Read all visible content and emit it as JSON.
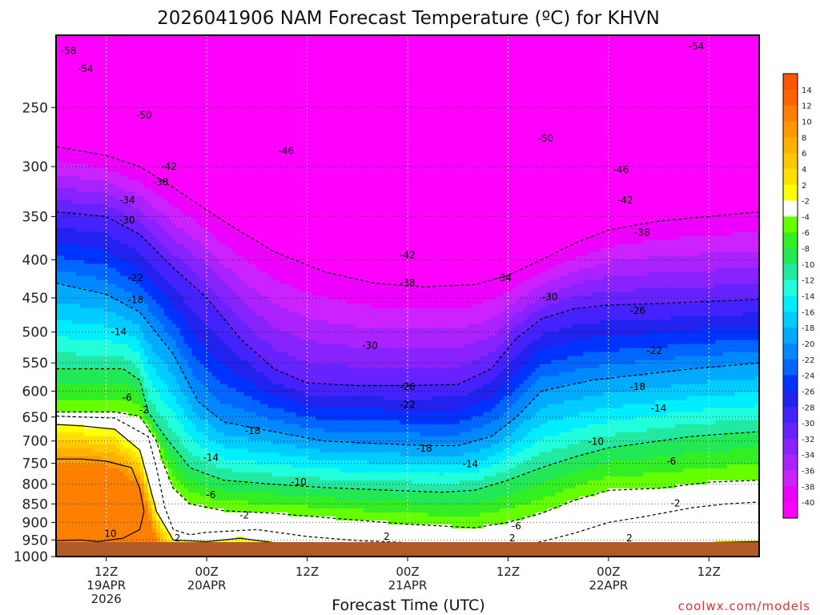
{
  "chart_data": {
    "type": "heatmap",
    "title": "2026041906 NAM Forecast Temperature (ºC) for KHVN",
    "xlabel": "Forecast Time (UTC)",
    "ylabel": "",
    "y_axis": {
      "scale": "log-pressure",
      "range_hpa": [
        1000,
        200
      ],
      "ticks": [
        {
          "value": 250,
          "label": "250"
        },
        {
          "value": 300,
          "label": "300"
        },
        {
          "value": 350,
          "label": "350"
        },
        {
          "value": 400,
          "label": "400"
        },
        {
          "value": 450,
          "label": "450"
        },
        {
          "value": 500,
          "label": "500"
        },
        {
          "value": 550,
          "label": "550"
        },
        {
          "value": 600,
          "label": "600"
        },
        {
          "value": 650,
          "label": "650"
        },
        {
          "value": 700,
          "label": "700"
        },
        {
          "value": 750,
          "label": "750"
        },
        {
          "value": 800,
          "label": "800"
        },
        {
          "value": 850,
          "label": "850"
        },
        {
          "value": 900,
          "label": "900"
        },
        {
          "value": 950,
          "label": "950"
        },
        {
          "value": 1000,
          "label": "1000"
        }
      ]
    },
    "x_axis": {
      "range_hours": [
        0,
        84
      ],
      "ticks": [
        {
          "hour": 6,
          "lines": [
            "12Z",
            "19APR",
            "2026"
          ]
        },
        {
          "hour": 18,
          "lines": [
            "00Z",
            "20APR"
          ]
        },
        {
          "hour": 30,
          "lines": [
            "12Z"
          ]
        },
        {
          "hour": 42,
          "lines": [
            "00Z",
            "21APR"
          ]
        },
        {
          "hour": 54,
          "lines": [
            "12Z"
          ]
        },
        {
          "hour": 66,
          "lines": [
            "00Z",
            "22APR"
          ]
        },
        {
          "hour": 78,
          "lines": [
            "12Z"
          ]
        }
      ]
    },
    "colorbar": {
      "entries": [
        {
          "label": "14",
          "color": "#ff6600"
        },
        {
          "label": "12",
          "color": "#ff7f00"
        },
        {
          "label": "10",
          "color": "#ff9900"
        },
        {
          "label": "8",
          "color": "#ffb000"
        },
        {
          "label": "6",
          "color": "#ffc800"
        },
        {
          "label": "4",
          "color": "#ffe000"
        },
        {
          "label": "2",
          "color": "#ffff00"
        },
        {
          "label": "-2",
          "color": "#ffffff"
        },
        {
          "label": "-4",
          "color": "#66ff00"
        },
        {
          "label": "-6",
          "color": "#33ee22"
        },
        {
          "label": "-8",
          "color": "#22e855"
        },
        {
          "label": "-10",
          "color": "#22e8a0"
        },
        {
          "label": "-12",
          "color": "#22ffdd"
        },
        {
          "label": "-14",
          "color": "#00eeff"
        },
        {
          "label": "-16",
          "color": "#00ccff"
        },
        {
          "label": "-18",
          "color": "#00aaff"
        },
        {
          "label": "-20",
          "color": "#0088ff"
        },
        {
          "label": "-22",
          "color": "#0066ff"
        },
        {
          "label": "-24",
          "color": "#0033ff"
        },
        {
          "label": "-26",
          "color": "#2222ee"
        },
        {
          "label": "-28",
          "color": "#4422ff"
        },
        {
          "label": "-30",
          "color": "#6622ff"
        },
        {
          "label": "-32",
          "color": "#8822ff"
        },
        {
          "label": "-34",
          "color": "#aa22ff"
        },
        {
          "label": "-36",
          "color": "#cc22ff"
        },
        {
          "label": "-38",
          "color": "#ee00ff"
        },
        {
          "label": "-40",
          "color": "#ff00ff"
        }
      ],
      "top_color": "#ff5500"
    },
    "series": [
      {
        "name": "-2C isotherm",
        "points": [
          [
            0,
            648
          ],
          [
            3,
            650
          ],
          [
            7,
            652
          ],
          [
            11,
            690
          ],
          [
            12,
            760
          ],
          [
            13,
            860
          ],
          [
            14,
            920
          ],
          [
            16,
            935
          ],
          [
            18,
            928
          ],
          [
            24,
            920
          ],
          [
            30,
            940
          ],
          [
            36,
            952
          ],
          [
            42,
            958
          ],
          [
            46,
            962
          ],
          [
            50,
            965
          ],
          [
            54,
            968
          ],
          [
            58,
            955
          ],
          [
            62,
            930
          ],
          [
            66,
            900
          ],
          [
            70,
            885
          ],
          [
            76,
            860
          ],
          [
            80,
            850
          ],
          [
            84,
            845
          ]
        ]
      },
      {
        "name": "-4C isotherm",
        "points": [
          [
            0,
            640
          ],
          [
            3,
            640
          ],
          [
            7,
            640
          ],
          [
            10,
            648
          ],
          [
            12,
            700
          ],
          [
            13,
            760
          ],
          [
            14,
            810
          ],
          [
            16,
            850
          ],
          [
            20,
            868
          ],
          [
            26,
            875
          ],
          [
            34,
            890
          ],
          [
            42,
            905
          ],
          [
            50,
            915
          ],
          [
            54,
            900
          ],
          [
            58,
            875
          ],
          [
            62,
            840
          ],
          [
            66,
            815
          ],
          [
            72,
            810
          ],
          [
            78,
            795
          ],
          [
            84,
            790
          ]
        ]
      },
      {
        "name": "-10C isotherm",
        "points": [
          [
            0,
            560
          ],
          [
            4,
            560
          ],
          [
            8,
            560
          ],
          [
            10,
            580
          ],
          [
            11,
            640
          ],
          [
            13,
            690
          ],
          [
            16,
            760
          ],
          [
            20,
            790
          ],
          [
            26,
            800
          ],
          [
            32,
            808
          ],
          [
            40,
            815
          ],
          [
            46,
            820
          ],
          [
            50,
            815
          ],
          [
            54,
            790
          ],
          [
            58,
            760
          ],
          [
            62,
            735
          ],
          [
            66,
            715
          ],
          [
            70,
            705
          ],
          [
            76,
            690
          ],
          [
            84,
            680
          ]
        ]
      },
      {
        "name": "-20C isotherm",
        "points": [
          [
            0,
            430
          ],
          [
            6,
            445
          ],
          [
            10,
            470
          ],
          [
            14,
            535
          ],
          [
            17,
            620
          ],
          [
            20,
            660
          ],
          [
            26,
            680
          ],
          [
            32,
            700
          ],
          [
            38,
            705
          ],
          [
            44,
            710
          ],
          [
            48,
            710
          ],
          [
            52,
            690
          ],
          [
            55,
            650
          ],
          [
            58,
            600
          ],
          [
            64,
            580
          ],
          [
            70,
            570
          ],
          [
            76,
            560
          ],
          [
            84,
            550
          ]
        ]
      },
      {
        "name": "-30C isotherm",
        "points": [
          [
            0,
            345
          ],
          [
            6,
            350
          ],
          [
            10,
            370
          ],
          [
            14,
            410
          ],
          [
            18,
            450
          ],
          [
            22,
            510
          ],
          [
            26,
            560
          ],
          [
            30,
            585
          ],
          [
            36,
            590
          ],
          [
            42,
            590
          ],
          [
            48,
            588
          ],
          [
            52,
            560
          ],
          [
            55,
            510
          ],
          [
            58,
            480
          ],
          [
            62,
            465
          ],
          [
            66,
            460
          ],
          [
            72,
            458
          ],
          [
            78,
            455
          ],
          [
            84,
            452
          ]
        ]
      },
      {
        "name": "-40C isotherm",
        "points": [
          [
            0,
            282
          ],
          [
            6,
            290
          ],
          [
            10,
            300
          ],
          [
            14,
            320
          ],
          [
            20,
            355
          ],
          [
            26,
            390
          ],
          [
            32,
            415
          ],
          [
            38,
            430
          ],
          [
            44,
            435
          ],
          [
            50,
            432
          ],
          [
            54,
            420
          ],
          [
            58,
            400
          ],
          [
            62,
            380
          ],
          [
            66,
            365
          ],
          [
            72,
            355
          ],
          [
            78,
            350
          ],
          [
            84,
            345
          ]
        ]
      },
      {
        "name": "2C isotherm",
        "points": [
          [
            0,
            665
          ],
          [
            3,
            668
          ],
          [
            7,
            675
          ],
          [
            10,
            720
          ],
          [
            11,
            790
          ],
          [
            12,
            870
          ],
          [
            14,
            950
          ],
          [
            18,
            955
          ],
          [
            22,
            945
          ],
          [
            26,
            958
          ],
          [
            30,
            970
          ],
          [
            34,
            975
          ],
          [
            38,
            980
          ],
          [
            42,
            970
          ],
          [
            44,
            968
          ],
          [
            48,
            975
          ],
          [
            52,
            990
          ],
          [
            54,
            998
          ],
          [
            56,
            990
          ],
          [
            60,
            978
          ],
          [
            66,
            968
          ],
          [
            70,
            965
          ],
          [
            74,
            962
          ],
          [
            78,
            958
          ],
          [
            84,
            955
          ]
        ]
      },
      {
        "name": "10C isotherm",
        "points": [
          [
            0,
            740
          ],
          [
            3,
            740
          ],
          [
            6,
            745
          ],
          [
            9,
            760
          ],
          [
            10,
            810
          ],
          [
            10.5,
            870
          ],
          [
            10,
            920
          ],
          [
            8,
            945
          ],
          [
            5,
            955
          ],
          [
            3,
            950
          ],
          [
            0,
            952
          ]
        ]
      }
    ],
    "contour_labels": [
      {
        "text": "-58",
        "x": 1.5,
        "y": 210
      },
      {
        "text": "-54",
        "x": 3.5,
        "y": 222
      },
      {
        "text": "-54",
        "x": 76.5,
        "y": 207
      },
      {
        "text": "-50",
        "x": 10.5,
        "y": 256
      },
      {
        "text": "-50",
        "x": 58.5,
        "y": 275
      },
      {
        "text": "-46",
        "x": 27.5,
        "y": 286
      },
      {
        "text": "-46",
        "x": 67.5,
        "y": 303
      },
      {
        "text": "-42",
        "x": 13.5,
        "y": 300
      },
      {
        "text": "-42",
        "x": 42,
        "y": 394
      },
      {
        "text": "-42",
        "x": 68,
        "y": 333
      },
      {
        "text": "-38",
        "x": 12.5,
        "y": 315
      },
      {
        "text": "-38",
        "x": 42,
        "y": 430
      },
      {
        "text": "-38",
        "x": 70,
        "y": 368
      },
      {
        "text": "-34",
        "x": 8.5,
        "y": 333
      },
      {
        "text": "-34",
        "x": 53.5,
        "y": 423
      },
      {
        "text": "-30",
        "x": 8.5,
        "y": 354
      },
      {
        "text": "-30",
        "x": 37.5,
        "y": 521
      },
      {
        "text": "-30",
        "x": 59,
        "y": 449
      },
      {
        "text": "-26",
        "x": 42,
        "y": 592
      },
      {
        "text": "-26",
        "x": 69.5,
        "y": 468
      },
      {
        "text": "-22",
        "x": 9.5,
        "y": 423
      },
      {
        "text": "-22",
        "x": 42,
        "y": 626
      },
      {
        "text": "-22",
        "x": 71.5,
        "y": 530
      },
      {
        "text": "-18",
        "x": 9.5,
        "y": 453
      },
      {
        "text": "-18",
        "x": 23.5,
        "y": 678
      },
      {
        "text": "-18",
        "x": 44,
        "y": 716
      },
      {
        "text": "-18",
        "x": 69.5,
        "y": 592
      },
      {
        "text": "-14",
        "x": 7.5,
        "y": 500
      },
      {
        "text": "-14",
        "x": 18.5,
        "y": 737
      },
      {
        "text": "-14",
        "x": 49.5,
        "y": 752
      },
      {
        "text": "-14",
        "x": 72,
        "y": 633
      },
      {
        "text": "-10",
        "x": 29,
        "y": 795
      },
      {
        "text": "-10",
        "x": 64.5,
        "y": 701
      },
      {
        "text": "-6",
        "x": 8.5,
        "y": 612
      },
      {
        "text": "-6",
        "x": 18.5,
        "y": 827
      },
      {
        "text": "-6",
        "x": 55,
        "y": 910
      },
      {
        "text": "-6",
        "x": 73.5,
        "y": 745
      },
      {
        "text": "-2",
        "x": 22.5,
        "y": 880
      },
      {
        "text": "-2",
        "x": 74,
        "y": 848
      },
      {
        "text": "-2",
        "x": 10.5,
        "y": 636
      },
      {
        "text": "2",
        "x": 14.5,
        "y": 945
      },
      {
        "text": "2",
        "x": 39.5,
        "y": 940
      },
      {
        "text": "2",
        "x": 54.5,
        "y": 945
      },
      {
        "text": "2",
        "x": 68.5,
        "y": 945
      },
      {
        "text": "10",
        "x": 6.5,
        "y": 932
      }
    ]
  },
  "footer": {
    "credit": "coolwx.com/models"
  }
}
